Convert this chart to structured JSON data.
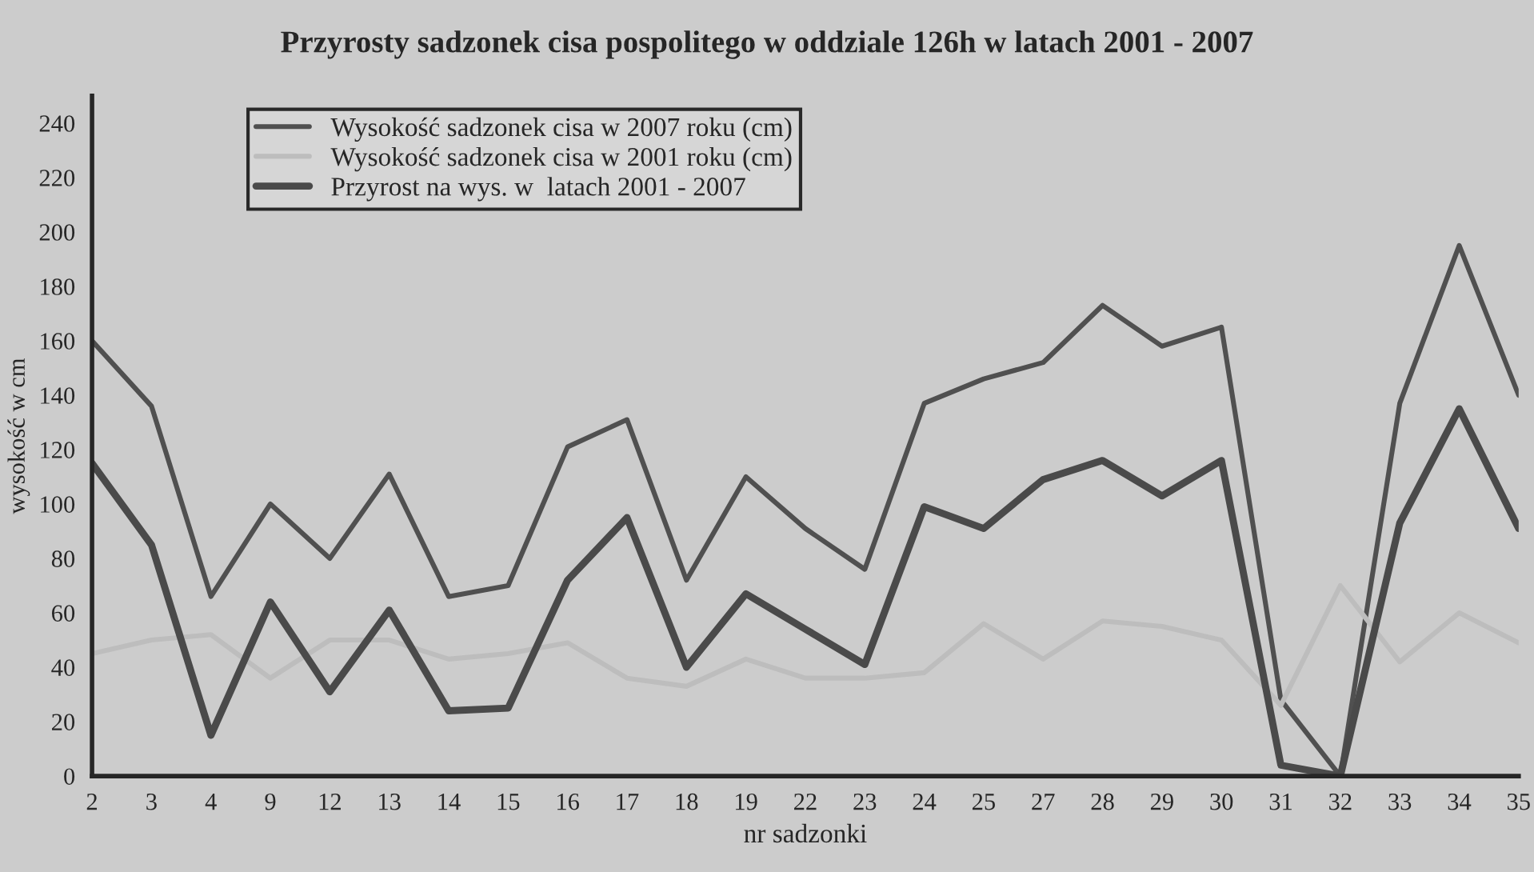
{
  "chart_data": {
    "type": "line",
    "title": "Przyrosty sadzonek cisa pospolitego w oddziale 126h w latach 2001 - 2007",
    "xlabel": "nr sadzonki",
    "ylabel": "wysokość w cm",
    "categories": [
      "2",
      "3",
      "4",
      "9",
      "12",
      "13",
      "14",
      "15",
      "16",
      "17",
      "18",
      "19",
      "22",
      "23",
      "24",
      "25",
      "27",
      "28",
      "29",
      "30",
      "31",
      "32",
      "33",
      "34",
      "35"
    ],
    "series": [
      {
        "name": "Wysokość sadzonek cisa w 2007 roku (cm)",
        "color": "#505050",
        "values": [
          160,
          136,
          66,
          100,
          80,
          111,
          66,
          70,
          121,
          131,
          72,
          110,
          91,
          76,
          137,
          146,
          152,
          173,
          158,
          165,
          28,
          0,
          137,
          195,
          140
        ]
      },
      {
        "name": "Wysokość sadzonek cisa w 2001 roku (cm)",
        "color": "#bdbdbd",
        "values": [
          45,
          50,
          52,
          36,
          50,
          50,
          43,
          45,
          49,
          36,
          33,
          43,
          36,
          36,
          38,
          56,
          43,
          57,
          55,
          50,
          26,
          70,
          42,
          60,
          49
        ]
      },
      {
        "name": "Przyrost na wys. w  latach 2001 - 2007",
        "color": "#4a4a4a",
        "values": [
          115,
          85,
          15,
          64,
          31,
          61,
          24,
          25,
          72,
          95,
          40,
          67,
          54,
          41,
          99,
          91,
          109,
          116,
          103,
          116,
          4,
          0,
          93,
          135,
          91
        ]
      }
    ],
    "ylim": [
      0,
      250
    ],
    "yticks": [
      0,
      20,
      40,
      60,
      80,
      100,
      120,
      140,
      160,
      180,
      200,
      220,
      240
    ],
    "legend": "top left",
    "marker": "none",
    "line_style": "solid"
  }
}
